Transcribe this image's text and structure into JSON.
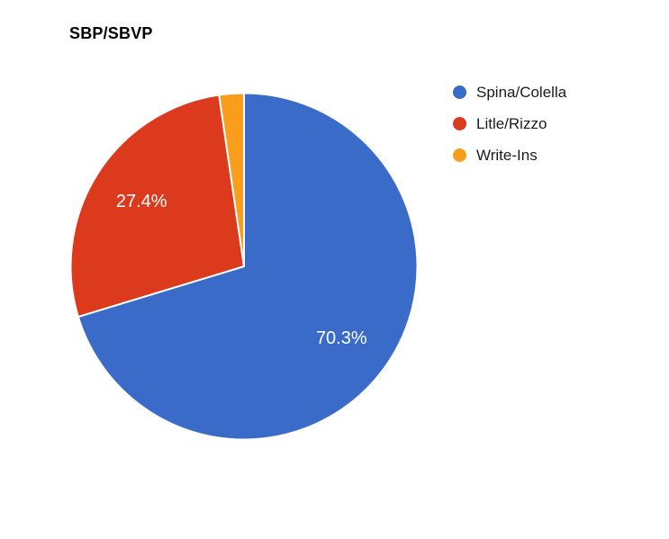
{
  "chart_data": {
    "type": "pie",
    "title": "SBP/SBVP",
    "categories": [
      "Spina/Colella",
      "Litle/Rizzo",
      "Write-Ins"
    ],
    "values": [
      70.3,
      27.4,
      2.3
    ],
    "data_labels": [
      "70.3%",
      "27.4%",
      ""
    ],
    "colors": [
      "#3b6bc9",
      "#dc3a1d",
      "#f99d1c"
    ],
    "legend_position": "right",
    "start_angle_deg": 0,
    "direction": "clockwise",
    "slice_label_color": "#ffffff",
    "background": "#ffffff",
    "grid": false
  }
}
